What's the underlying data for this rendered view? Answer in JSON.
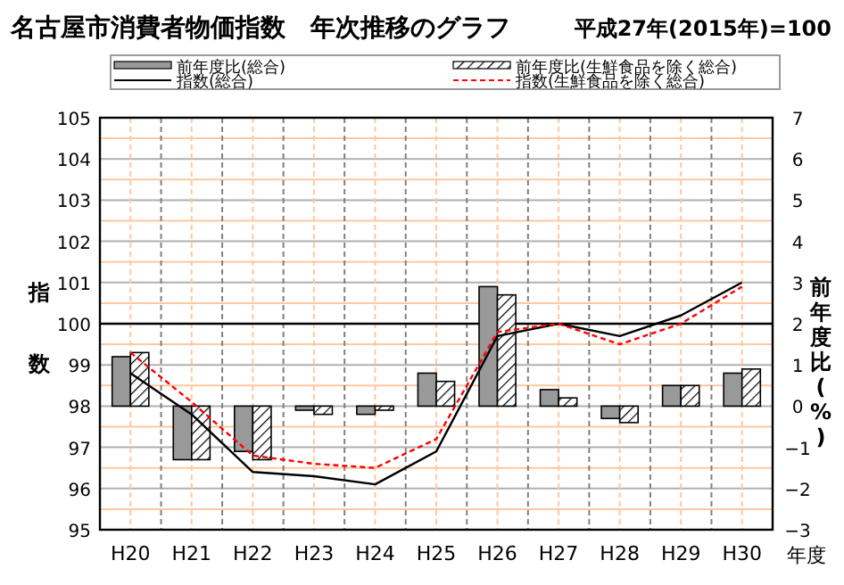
{
  "chart_data": {
    "type": "bar",
    "title": "名古屋市消費者物価指数　年次推移のグラフ",
    "subtitle": "平成27年(2015年)=100",
    "ylabel": "指数",
    "y2label": "前年度比(%)",
    "xlabel": "年度",
    "categories": [
      "H20",
      "H21",
      "H22",
      "H23",
      "H24",
      "H25",
      "H26",
      "H27",
      "H28",
      "H29",
      "H30"
    ],
    "series": [
      {
        "name": "前年度比(総合)",
        "axis": "y2",
        "color": "#999999",
        "values": [
          1.2,
          -1.3,
          -1.1,
          -0.1,
          -0.2,
          0.8,
          2.9,
          0.4,
          -0.3,
          0.5,
          0.8
        ]
      },
      {
        "name": "前年度比(生鮮食品を除く総合)",
        "axis": "y2",
        "color": "#000000",
        "values": [
          1.3,
          -1.3,
          -1.3,
          -0.2,
          -0.1,
          0.6,
          2.7,
          0.2,
          -0.4,
          0.5,
          0.9
        ]
      },
      {
        "name": "指数(総合)",
        "type": "line",
        "color": "#000000",
        "line_style": "solid",
        "values": [
          98.8,
          97.8,
          96.4,
          96.3,
          96.1,
          96.9,
          99.7,
          100.0,
          99.7,
          100.2,
          101.0
        ]
      },
      {
        "name": "指数(生鮮食品を除く総合)",
        "type": "line",
        "color": "#ff0000",
        "line_style": "dashed",
        "values": [
          99.3,
          98.1,
          96.8,
          96.6,
          96.5,
          97.2,
          99.8,
          100.0,
          99.5,
          100.0,
          100.9
        ]
      }
    ],
    "ylim": [
      95,
      105
    ],
    "yticks": [
      95,
      {
        "value": 95.5,
        "label": null
      },
      96,
      {
        "value": 96.5,
        "label": null
      },
      97,
      {
        "value": 97.5,
        "label": null
      },
      98,
      {
        "value": 98.5,
        "label": null
      },
      99,
      {
        "value": 99.5,
        "label": null
      },
      100,
      {
        "value": 100.5,
        "label": null
      },
      101,
      {
        "value": 101.5,
        "label": null
      },
      102,
      {
        "value": 102.5,
        "label": null
      },
      103,
      {
        "value": 103.5,
        "label": null
      },
      104,
      {
        "value": 104.5,
        "label": null
      },
      105
    ],
    "y2lim": [
      -3,
      7
    ],
    "y2ticks": [
      -3,
      -2,
      -1,
      0,
      1,
      2,
      3,
      4,
      5,
      6,
      7
    ],
    "ref_lines": [
      {
        "axis": "y",
        "value": 100,
        "color": "#000000"
      }
    ],
    "grid": true,
    "legend": "top",
    "marker": "none"
  }
}
